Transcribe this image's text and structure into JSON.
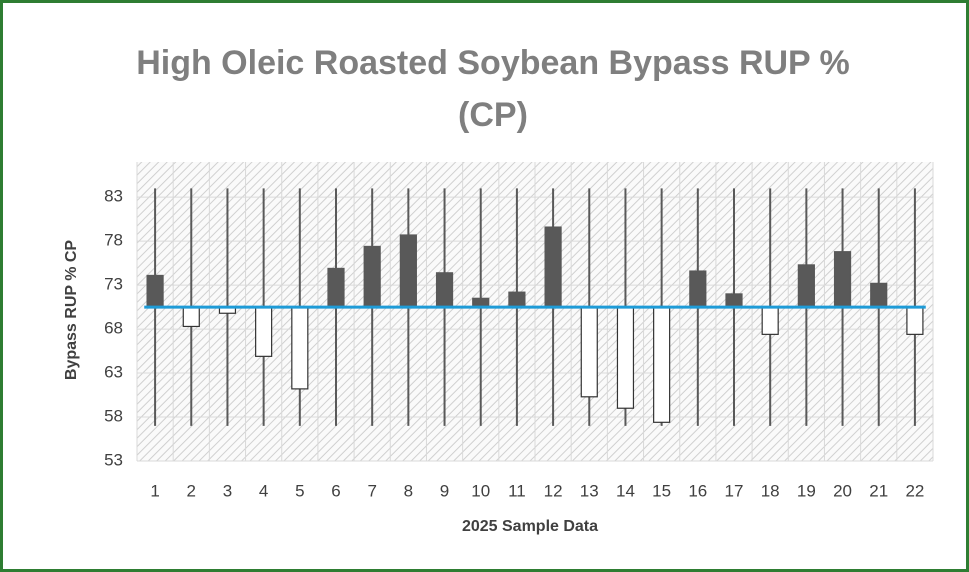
{
  "chart_data": {
    "type": "candlestick",
    "title": "High Oleic Roasted Soybean Bypass RUP % (CP)",
    "x_label": "2025 Sample Data",
    "y_label": "Bypass RUP % CP",
    "categories": [
      "1",
      "2",
      "3",
      "4",
      "5",
      "6",
      "7",
      "8",
      "9",
      "10",
      "11",
      "12",
      "13",
      "14",
      "15",
      "16",
      "17",
      "18",
      "19",
      "20",
      "21",
      "22"
    ],
    "open": [
      70.5,
      70.5,
      70.5,
      70.5,
      70.5,
      70.5,
      70.5,
      70.5,
      70.5,
      70.5,
      70.5,
      70.5,
      70.5,
      70.5,
      70.5,
      70.5,
      70.5,
      70.5,
      70.5,
      70.5,
      70.5,
      70.5
    ],
    "close": [
      74.1,
      68.3,
      69.8,
      64.9,
      61.2,
      74.9,
      77.4,
      78.7,
      74.4,
      71.5,
      72.2,
      79.6,
      60.3,
      59.0,
      57.4,
      74.6,
      72.0,
      67.4,
      75.3,
      76.8,
      73.2,
      67.4
    ],
    "high": [
      84,
      84,
      84,
      84,
      84,
      84,
      84,
      84,
      84,
      84,
      84,
      84,
      84,
      84,
      84,
      84,
      84,
      84,
      84,
      84,
      84,
      84
    ],
    "low": [
      57,
      57,
      57,
      57,
      57,
      57,
      57,
      57,
      57,
      57,
      57,
      57,
      57,
      57,
      57,
      57,
      57,
      57,
      57,
      57,
      57,
      57
    ],
    "up_color": "#595959",
    "down_color": "#ffffff",
    "line_color": "#1e9bd7",
    "ylim": [
      53,
      87
    ],
    "yticks": [
      53,
      58,
      63,
      68,
      73,
      78,
      83
    ],
    "grid": true
  }
}
